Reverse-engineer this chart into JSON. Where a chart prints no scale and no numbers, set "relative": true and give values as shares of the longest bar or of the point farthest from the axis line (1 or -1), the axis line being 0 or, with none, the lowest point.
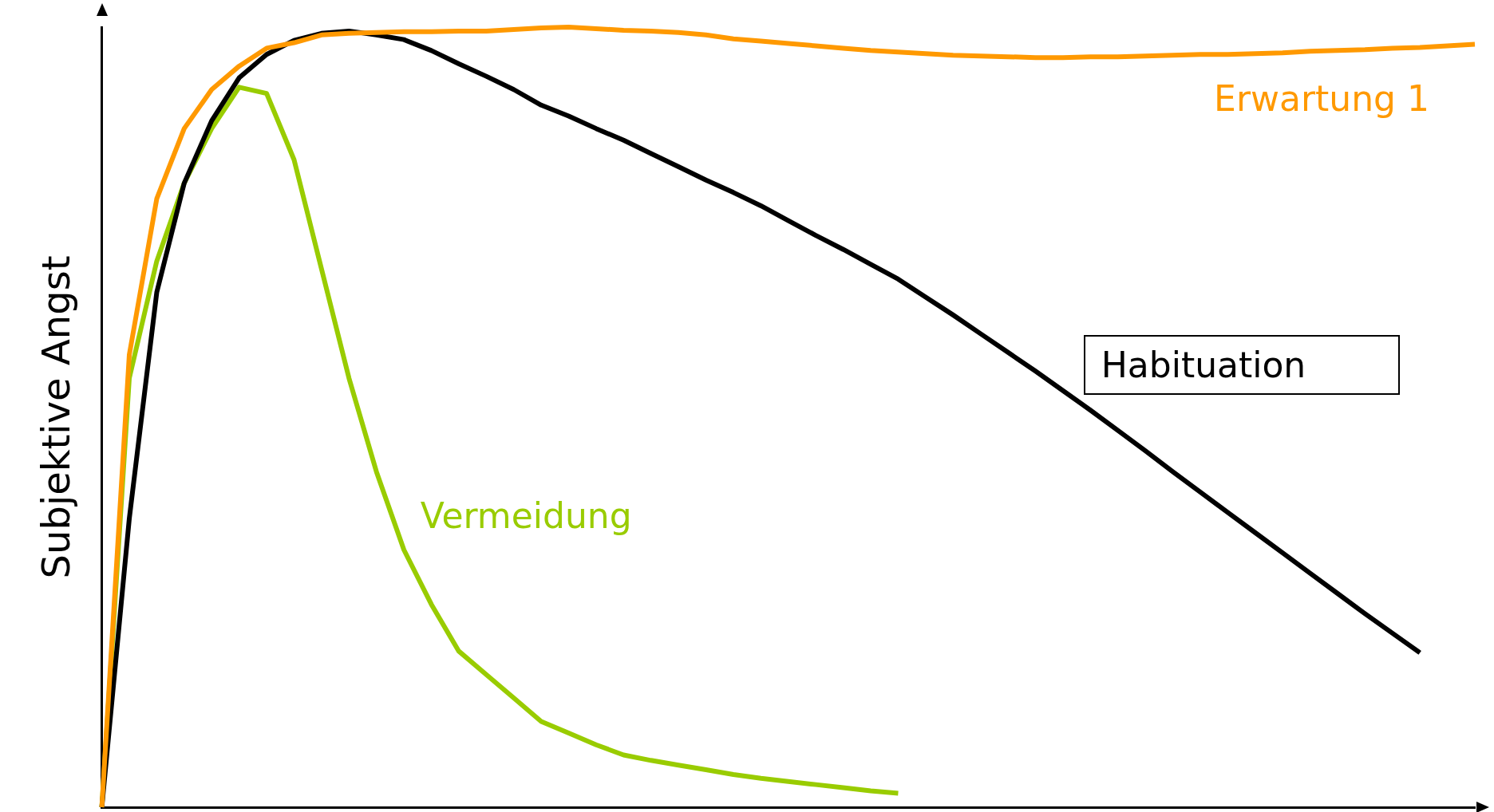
{
  "chart_data": {
    "type": "line",
    "relative": true,
    "ylabel": "Subjektive Angst",
    "categories": [
      null,
      null,
      null,
      null,
      null,
      null,
      null,
      null,
      null,
      null,
      null,
      null,
      null,
      null,
      null,
      null,
      null,
      null,
      null,
      null,
      null,
      null,
      null,
      null,
      null,
      null,
      null,
      null,
      null,
      null,
      null,
      null,
      null,
      null,
      null,
      null,
      null,
      null,
      null,
      null,
      null,
      null,
      null,
      null,
      null,
      null,
      null,
      null,
      null,
      null,
      null
    ],
    "tick_labels": false,
    "grid": false,
    "legend": false,
    "marker": "none",
    "line_style": "solid",
    "series": [
      {
        "name": "Erwartung 1",
        "color": "#ff9900",
        "values": [
          0,
          0.58,
          0.78,
          0.87,
          0.92,
          0.95,
          0.973,
          0.98,
          0.99,
          0.992,
          0.993,
          0.994,
          0.994,
          0.995,
          0.995,
          0.997,
          0.999,
          1.0,
          0.998,
          0.996,
          0.995,
          0.993,
          0.99,
          0.985,
          0.982,
          0.979,
          0.976,
          0.973,
          0.97,
          0.968,
          0.966,
          0.964,
          0.963,
          0.962,
          0.961,
          0.961,
          0.962,
          0.962,
          0.963,
          0.964,
          0.965,
          0.965,
          0.966,
          0.967,
          0.969,
          0.97,
          0.971,
          0.973,
          0.974,
          0.976,
          0.978
        ]
      },
      {
        "name": "Habituation",
        "color": "#000000",
        "values": [
          0,
          0.37,
          0.66,
          0.8,
          0.88,
          0.935,
          0.965,
          0.983,
          0.992,
          0.995,
          0.99,
          0.984,
          0.97,
          0.953,
          0.937,
          0.92,
          0.9,
          0.886,
          0.87,
          0.855,
          0.838,
          0.821,
          0.804,
          0.788,
          0.771,
          0.752,
          0.733,
          0.715,
          0.696,
          0.677,
          0.654,
          0.631,
          0.607,
          0.583,
          0.559,
          0.534,
          0.509,
          0.483,
          0.457,
          0.43,
          0.404,
          0.378,
          0.352,
          0.326,
          0.3,
          0.274,
          0.248,
          0.223,
          0.198,
          null,
          null
        ]
      },
      {
        "name": "Vermeidung",
        "color": "#99cc00",
        "values": [
          0,
          0.55,
          0.7,
          0.8,
          0.87,
          0.923,
          0.915,
          0.83,
          0.69,
          0.55,
          0.43,
          0.33,
          0.26,
          0.2,
          0.17,
          0.14,
          0.11,
          0.095,
          0.08,
          0.067,
          0.06,
          0.054,
          0.048,
          0.042,
          0.037,
          0.033,
          0.029,
          0.025,
          0.021,
          0.018,
          null,
          null,
          null,
          null,
          null,
          null,
          null,
          null,
          null,
          null,
          null,
          null,
          null,
          null,
          null,
          null,
          null,
          null,
          null,
          null,
          null
        ]
      }
    ]
  }
}
